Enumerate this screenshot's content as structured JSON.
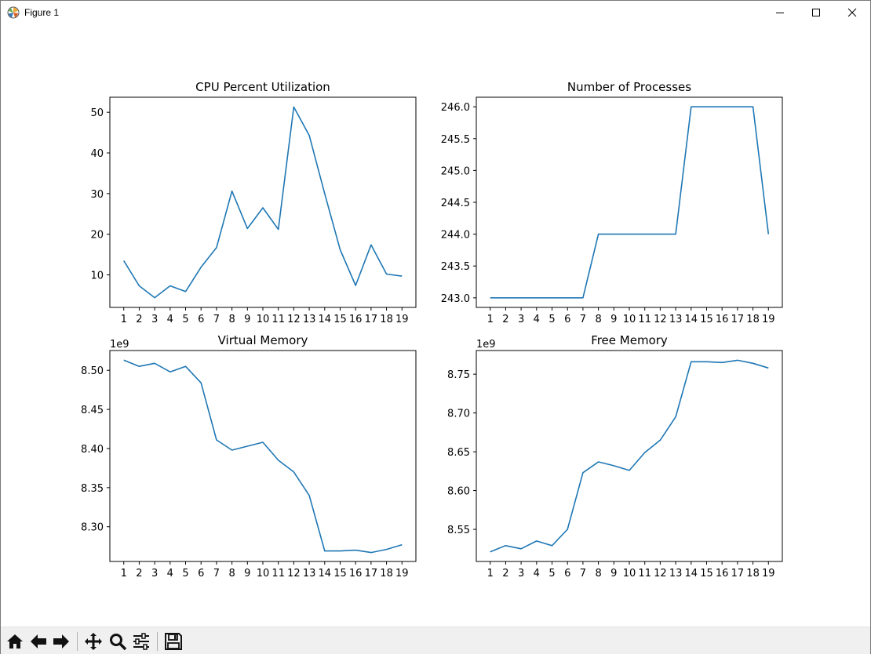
{
  "window": {
    "title": "Figure 1",
    "icons": {
      "app": "matplotlib-icon",
      "minimize": "minimize-icon",
      "maximize": "maximize-icon",
      "close": "close-icon"
    }
  },
  "toolbar": {
    "buttons": [
      {
        "icon": "home-icon"
      },
      {
        "icon": "back-arrow-icon"
      },
      {
        "icon": "forward-arrow-icon"
      },
      {
        "icon": "pan-icon"
      },
      {
        "icon": "zoom-icon"
      },
      {
        "icon": "configure-subplots-icon"
      },
      {
        "icon": "save-icon"
      }
    ]
  },
  "colors": {
    "line": "#1f77b4",
    "axes": "#000000",
    "toolbar_bg": "#f0f0f0"
  },
  "chart_data": [
    {
      "type": "line",
      "title": "CPU Percent Utilization",
      "x": [
        1,
        2,
        3,
        4,
        5,
        6,
        7,
        8,
        9,
        10,
        11,
        12,
        13,
        14,
        15,
        16,
        17,
        18,
        19
      ],
      "series": [
        {
          "values": [
            13.5,
            7.3,
            4.4,
            7.3,
            5.9,
            11.9,
            16.7,
            30.6,
            21.4,
            26.5,
            21.2,
            51.3,
            44.3,
            30.0,
            16.2,
            7.4,
            17.4,
            10.2,
            9.7
          ]
        }
      ],
      "xlim": [
        0.1,
        19.9
      ],
      "ylim": [
        2.0,
        53.7
      ],
      "yticks": [
        10,
        20,
        30,
        40,
        50
      ],
      "ytick_labels": [
        "10",
        "20",
        "30",
        "40",
        "50"
      ],
      "offset_label": "",
      "grid": false
    },
    {
      "type": "line",
      "title": "Number of Processes",
      "x": [
        1,
        2,
        3,
        4,
        5,
        6,
        7,
        8,
        9,
        10,
        11,
        12,
        13,
        14,
        15,
        16,
        17,
        18,
        19
      ],
      "series": [
        {
          "values": [
            243,
            243,
            243,
            243,
            243,
            243,
            243,
            244,
            244,
            244,
            244,
            244,
            244,
            246,
            246,
            246,
            246,
            246,
            244
          ]
        }
      ],
      "xlim": [
        0.1,
        19.9
      ],
      "ylim": [
        242.85,
        246.15
      ],
      "yticks": [
        243.0,
        243.5,
        244.0,
        244.5,
        245.0,
        245.5,
        246.0
      ],
      "ytick_labels": [
        "243.0",
        "243.5",
        "244.0",
        "244.5",
        "245.0",
        "245.5",
        "246.0"
      ],
      "offset_label": "",
      "grid": false
    },
    {
      "type": "line",
      "title": "Virtual Memory",
      "x": [
        1,
        2,
        3,
        4,
        5,
        6,
        7,
        8,
        9,
        10,
        11,
        12,
        13,
        14,
        15,
        16,
        17,
        18,
        19
      ],
      "series": [
        {
          "values": [
            8513000000,
            8505000000,
            8509000000,
            8498000000,
            8505000000,
            8484000000,
            8411000000,
            8398000000,
            8403000000,
            8408000000,
            8385000000,
            8370000000,
            8340000000,
            8269000000,
            8269000000,
            8270000000,
            8267000000,
            8271000000,
            8277000000
          ]
        }
      ],
      "xlim": [
        0.1,
        19.9
      ],
      "ylim": [
        8255600000,
        8525300000
      ],
      "yticks": [
        8300000000,
        8350000000,
        8400000000,
        8450000000,
        8500000000
      ],
      "ytick_labels": [
        "8.30",
        "8.35",
        "8.40",
        "8.45",
        "8.50"
      ],
      "offset_label": "1e9",
      "grid": false
    },
    {
      "type": "line",
      "title": "Free Memory",
      "x": [
        1,
        2,
        3,
        4,
        5,
        6,
        7,
        8,
        9,
        10,
        11,
        12,
        13,
        14,
        15,
        16,
        17,
        18,
        19
      ],
      "series": [
        {
          "values": [
            8521000000,
            8529000000,
            8525000000,
            8535000000,
            8529000000,
            8550000000,
            8623000000,
            8637000000,
            8632000000,
            8626000000,
            8649000000,
            8665000000,
            8695000000,
            8766000000,
            8766000000,
            8765000000,
            8768000000,
            8764000000,
            8758000000
          ]
        }
      ],
      "xlim": [
        0.1,
        19.9
      ],
      "ylim": [
        8508600000,
        8780500000
      ],
      "yticks": [
        8550000000,
        8600000000,
        8650000000,
        8700000000,
        8750000000
      ],
      "ytick_labels": [
        "8.55",
        "8.60",
        "8.65",
        "8.70",
        "8.75"
      ],
      "offset_label": "1e9",
      "grid": false
    }
  ]
}
